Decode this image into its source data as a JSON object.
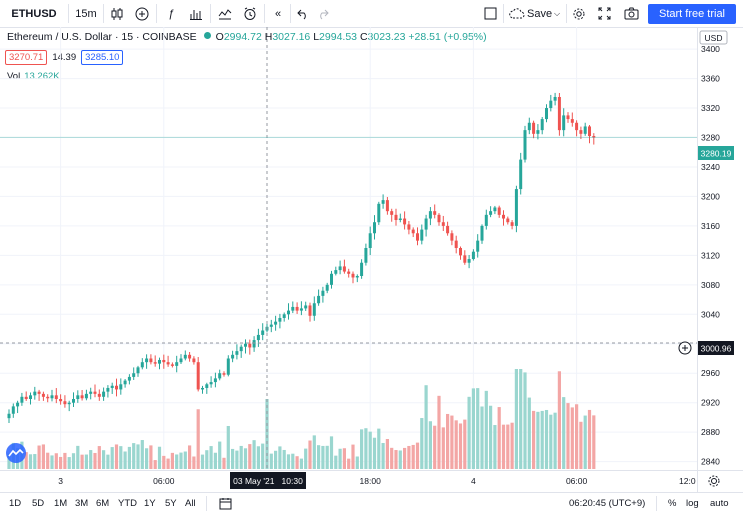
{
  "toolbar": {
    "symbol": "ETHUSD",
    "interval": "15m",
    "save_label": "Save",
    "trial_label": "Start free trial"
  },
  "legend": {
    "title": "Ethereum / U.S. Dollar · 15 · COINBASE",
    "open_label": "O",
    "open": "2994.72",
    "high_label": "H",
    "high": "3027.16",
    "low_label": "L",
    "low": "2994.53",
    "close_label": "C",
    "close": "3023.23",
    "change": "+28.51 (+0.95%)",
    "bid": "3270.71",
    "spread": "14.39",
    "ask": "3285.10",
    "vol_label": "Vol",
    "vol_value": "13.262K"
  },
  "price_axis": {
    "currency": "USD",
    "current_price_label": "3280.19",
    "crosshair_price_label": "3000.96"
  },
  "time_axis": {
    "crosshair_time_label": "03 May '21   10:30",
    "right_edge_label": "12:0"
  },
  "bottom": {
    "ranges": [
      "1D",
      "5D",
      "1M",
      "3M",
      "6M",
      "YTD",
      "1Y",
      "5Y",
      "All"
    ],
    "clock": "06:20:45 (UTC+9)",
    "percent_label": "%",
    "log_label": "log",
    "auto_label": "auto"
  },
  "colors": {
    "up": "#26a69a",
    "down": "#ef5350",
    "vol_up": "#9ad6cf",
    "vol_down": "#f3a6a5",
    "accent": "#2962ff"
  },
  "chart_data": {
    "type": "candlestick",
    "symbol": "ETHUSD",
    "interval": "15",
    "exchange": "COINBASE",
    "y_ticks": [
      2840,
      2880,
      2920,
      2960,
      3000,
      3040,
      3080,
      3120,
      3160,
      3200,
      3240,
      3280,
      3320,
      3360,
      3400
    ],
    "ylim": [
      2830,
      3430
    ],
    "x_ticks": [
      {
        "label": "3",
        "bar": 12
      },
      {
        "label": "06:00",
        "bar": 36
      },
      {
        "label": "18:00",
        "bar": 84
      },
      {
        "label": "4",
        "bar": 108
      },
      {
        "label": "06:00",
        "bar": 132
      }
    ],
    "crosshair": {
      "bar": 60,
      "price": 3000.96
    },
    "current_price": 3280.19,
    "closes": [
      2905,
      2915,
      2920,
      2928,
      2925,
      2930,
      2935,
      2932,
      2928,
      2926,
      2930,
      2925,
      2922,
      2918,
      2920,
      2925,
      2930,
      2926,
      2932,
      2935,
      2932,
      2928,
      2935,
      2940,
      2943,
      2938,
      2945,
      2950,
      2955,
      2960,
      2968,
      2975,
      2980,
      2975,
      2973,
      2978,
      2975,
      2972,
      2970,
      2975,
      2980,
      2985,
      2980,
      2975,
      2938,
      2940,
      2945,
      2948,
      2953,
      2960,
      2958,
      2980,
      2985,
      2990,
      2996,
      3000,
      2995,
      3005,
      3012,
      3018,
      3023,
      3026,
      3030,
      3035,
      3040,
      3045,
      3050,
      3045,
      3048,
      3052,
      3038,
      3055,
      3065,
      3072,
      3080,
      3095,
      3100,
      3105,
      3098,
      3095,
      3090,
      3092,
      3110,
      3130,
      3150,
      3165,
      3190,
      3195,
      3180,
      3175,
      3168,
      3170,
      3162,
      3155,
      3150,
      3140,
      3155,
      3170,
      3180,
      3175,
      3165,
      3160,
      3150,
      3140,
      3130,
      3120,
      3110,
      3115,
      3125,
      3140,
      3160,
      3175,
      3180,
      3185,
      3175,
      3170,
      3165,
      3160,
      3210,
      3250,
      3290,
      3300,
      3285,
      3290,
      3305,
      3320,
      3330,
      3335,
      3290,
      3310,
      3305,
      3300,
      3290,
      3285,
      3295,
      3282,
      3280
    ]
  }
}
